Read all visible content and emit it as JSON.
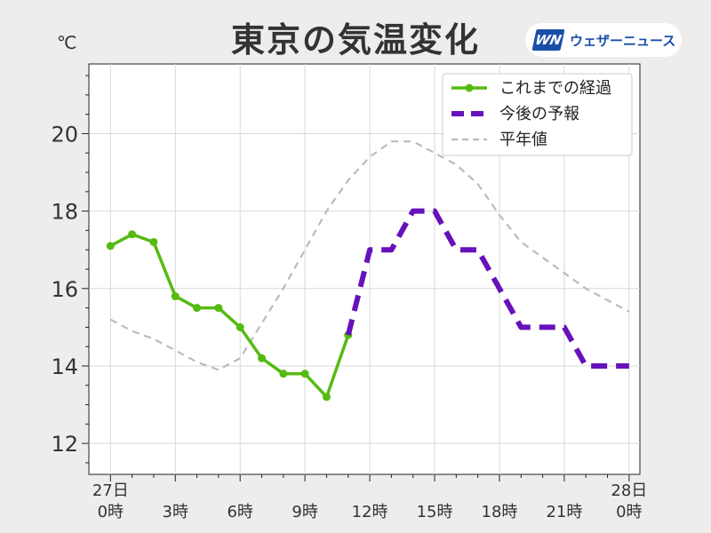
{
  "title": "東京の気温変化",
  "unit_label": "℃",
  "logo": {
    "mark": "WN",
    "text": "ウェザーニュース"
  },
  "chart_data": {
    "type": "line",
    "title": "東京の気温変化",
    "xlabel": "",
    "ylabel": "℃",
    "xlim": [
      -1,
      24.5
    ],
    "ylim": [
      11.2,
      21.8
    ],
    "grid": true,
    "legend_position": "top-right",
    "y_ticks": [
      12,
      14,
      16,
      18,
      20
    ],
    "x_ticks": [
      {
        "x": 0,
        "line1": "27日",
        "line2": "0時"
      },
      {
        "x": 3,
        "line1": "",
        "line2": "3時"
      },
      {
        "x": 6,
        "line1": "",
        "line2": "6時"
      },
      {
        "x": 9,
        "line1": "",
        "line2": "9時"
      },
      {
        "x": 12,
        "line1": "",
        "line2": "12時"
      },
      {
        "x": 15,
        "line1": "",
        "line2": "15時"
      },
      {
        "x": 18,
        "line1": "",
        "line2": "18時"
      },
      {
        "x": 21,
        "line1": "",
        "line2": "21時"
      },
      {
        "x": 24,
        "line1": "28日",
        "line2": "0時"
      }
    ],
    "series": [
      {
        "name": "平年値",
        "style": "dashed-thin",
        "color": "#bbbbbb",
        "x": [
          0,
          1,
          2,
          3,
          4,
          5,
          6,
          7,
          8,
          9,
          10,
          11,
          12,
          13,
          14,
          15,
          16,
          17,
          18,
          19,
          20,
          21,
          22,
          23,
          24
        ],
        "values": [
          15.2,
          14.9,
          14.7,
          14.4,
          14.1,
          13.9,
          14.2,
          15.1,
          16.0,
          17.0,
          18.0,
          18.8,
          19.4,
          19.8,
          19.8,
          19.5,
          19.2,
          18.7,
          17.9,
          17.2,
          16.8,
          16.4,
          16.0,
          15.7,
          15.4
        ]
      },
      {
        "name": "これまでの経過",
        "style": "solid-markers",
        "color": "#55bb11",
        "x": [
          0,
          1,
          2,
          3,
          4,
          5,
          6,
          7,
          8,
          9,
          10,
          11
        ],
        "values": [
          17.1,
          17.4,
          17.2,
          15.8,
          15.5,
          15.5,
          15.0,
          14.2,
          13.8,
          13.8,
          13.2,
          14.8
        ]
      },
      {
        "name": "今後の予報",
        "style": "dashed-thick",
        "color": "#6611bb",
        "x": [
          11,
          12,
          13,
          14,
          15,
          16,
          17,
          18,
          19,
          20,
          21,
          22,
          23,
          24
        ],
        "values": [
          14.8,
          17.0,
          17.0,
          18.0,
          18.0,
          17.0,
          17.0,
          16.0,
          15.0,
          15.0,
          15.0,
          14.0,
          14.0,
          14.0
        ]
      }
    ]
  }
}
